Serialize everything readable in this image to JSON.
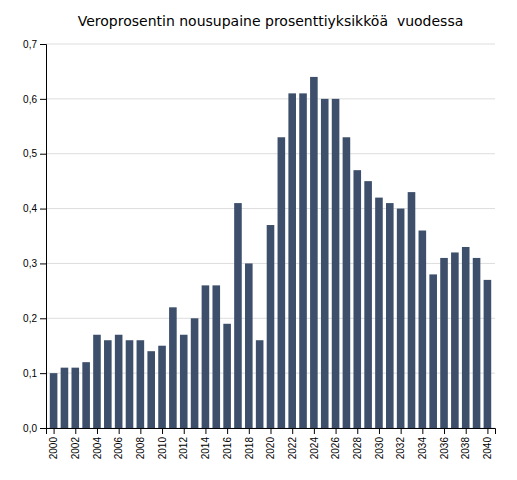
{
  "chart_data": {
    "type": "bar",
    "title": "Veroprosentin nousupaine prosenttiyksikköä  vuodessa",
    "x": [
      2000,
      2001,
      2002,
      2003,
      2004,
      2005,
      2006,
      2007,
      2008,
      2009,
      2010,
      2011,
      2012,
      2013,
      2014,
      2015,
      2016,
      2017,
      2018,
      2019,
      2020,
      2021,
      2022,
      2023,
      2024,
      2025,
      2026,
      2027,
      2028,
      2029,
      2030,
      2031,
      2032,
      2033,
      2034,
      2035,
      2036,
      2037,
      2038,
      2039,
      2040
    ],
    "values": [
      0.1,
      0.11,
      0.11,
      0.12,
      0.17,
      0.16,
      0.17,
      0.16,
      0.16,
      0.14,
      0.15,
      0.22,
      0.17,
      0.2,
      0.26,
      0.26,
      0.19,
      0.41,
      0.3,
      0.16,
      0.37,
      0.53,
      0.61,
      0.61,
      0.64,
      0.6,
      0.6,
      0.53,
      0.47,
      0.45,
      0.42,
      0.41,
      0.4,
      0.43,
      0.36,
      0.28,
      0.31,
      0.32,
      0.33,
      0.31,
      0.27
    ],
    "color": "#3d4f6b",
    "xlim": [
      1999.3,
      2040.7
    ],
    "xticks": [
      2000,
      2002,
      2004,
      2006,
      2008,
      2010,
      2012,
      2014,
      2016,
      2018,
      2020,
      2022,
      2024,
      2026,
      2028,
      2030,
      2032,
      2034,
      2036,
      2038,
      2040
    ],
    "ylim": [
      0.0,
      0.7
    ],
    "yticks": [
      {
        "value": 0.0,
        "label": "0,0"
      },
      {
        "value": 0.1,
        "label": "0,1"
      },
      {
        "value": 0.2,
        "label": "0,2"
      },
      {
        "value": 0.3,
        "label": "0,3"
      },
      {
        "value": 0.4,
        "label": "0,4"
      },
      {
        "value": 0.5,
        "label": "0,5"
      },
      {
        "value": 0.6,
        "label": "0,6"
      },
      {
        "value": 0.7,
        "label": "0,7"
      }
    ],
    "grid": true
  }
}
